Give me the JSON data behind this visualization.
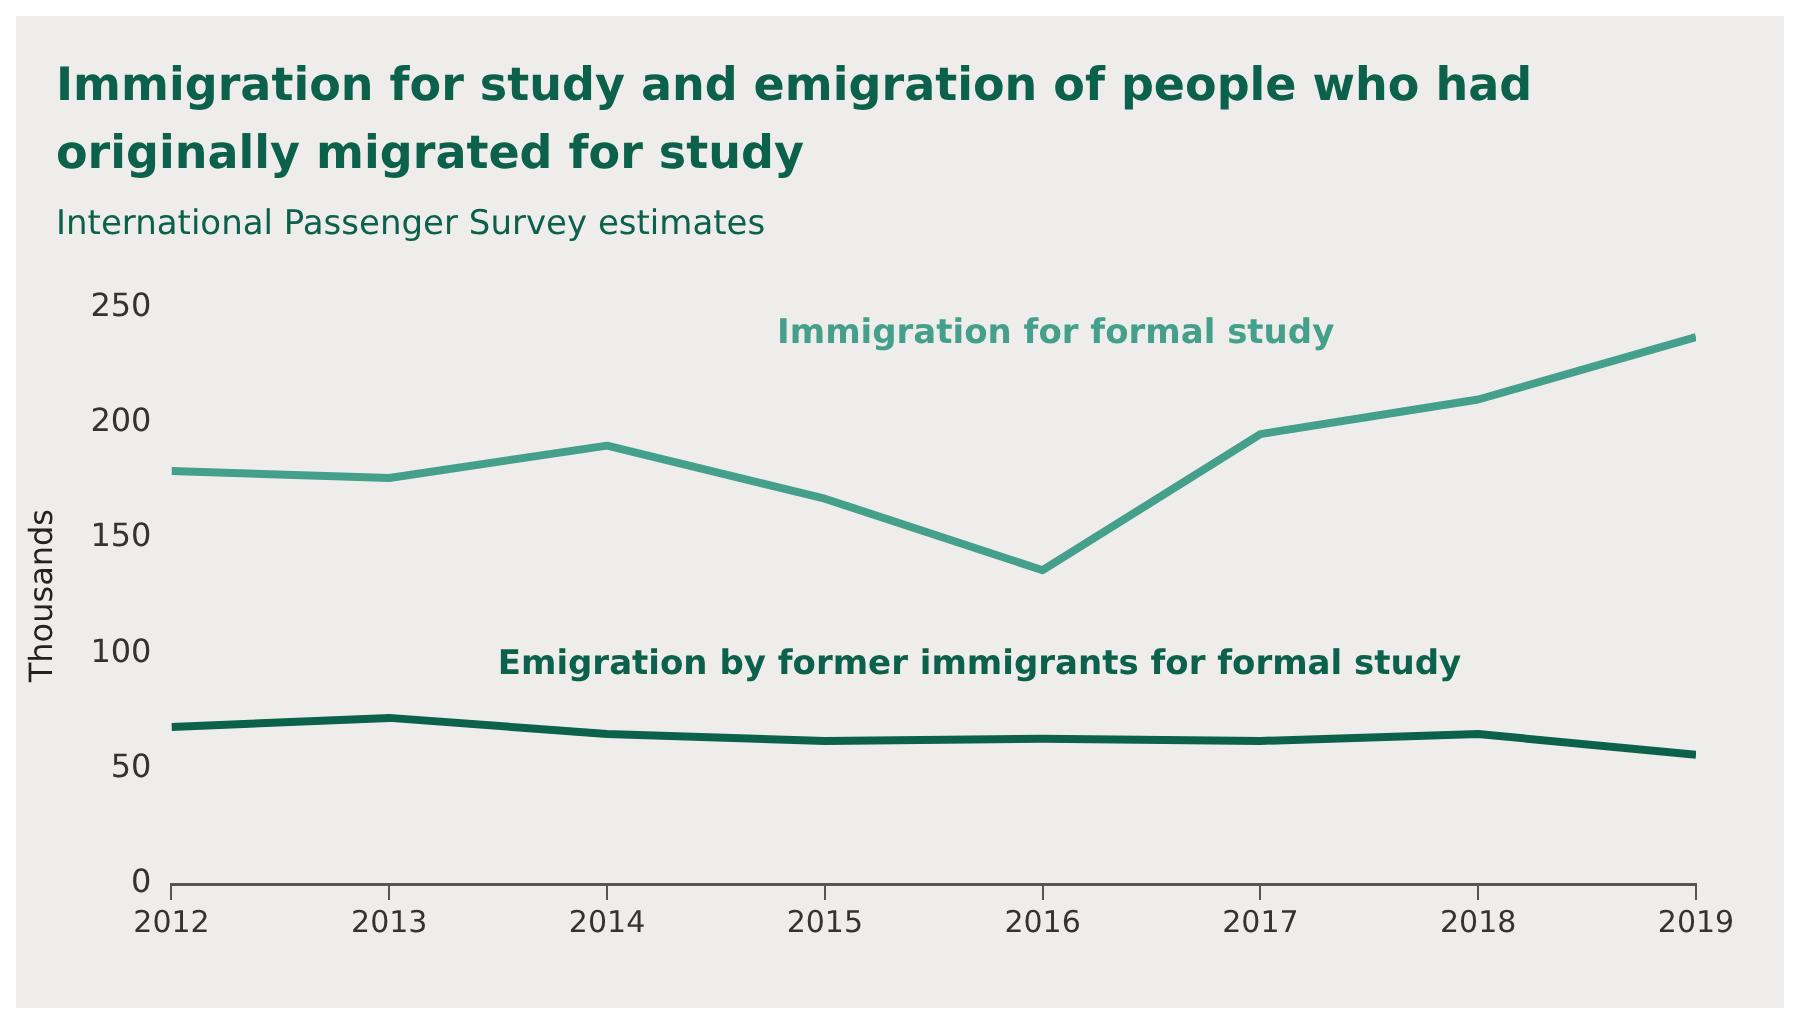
{
  "chart_data": {
    "type": "line",
    "title": "Immigration for study and emigration of people who had originally migrated for study",
    "subtitle": "International Passenger Survey estimates",
    "ylabel": "Thousands",
    "x": [
      2012,
      2013,
      2014,
      2015,
      2016,
      2017,
      2018,
      2019
    ],
    "xlim": [
      2012,
      2019
    ],
    "xticks": [
      2012,
      2013,
      2014,
      2015,
      2016,
      2017,
      2018,
      2019
    ],
    "ylim": [
      0,
      250
    ],
    "yticks": [
      0,
      50,
      100,
      150,
      200,
      250
    ],
    "series": [
      {
        "name": "Immigration for formal study",
        "color": "#44a08a",
        "values": [
          179,
          176,
          190,
          167,
          136,
          195,
          210,
          237
        ]
      },
      {
        "name": "Emigration by former immigrants for formal study",
        "color": "#0b6149",
        "values": [
          68,
          72,
          65,
          62,
          63,
          62,
          65,
          56
        ]
      }
    ],
    "grid": false,
    "legend": false,
    "marker": "none",
    "line_style": "solid"
  }
}
